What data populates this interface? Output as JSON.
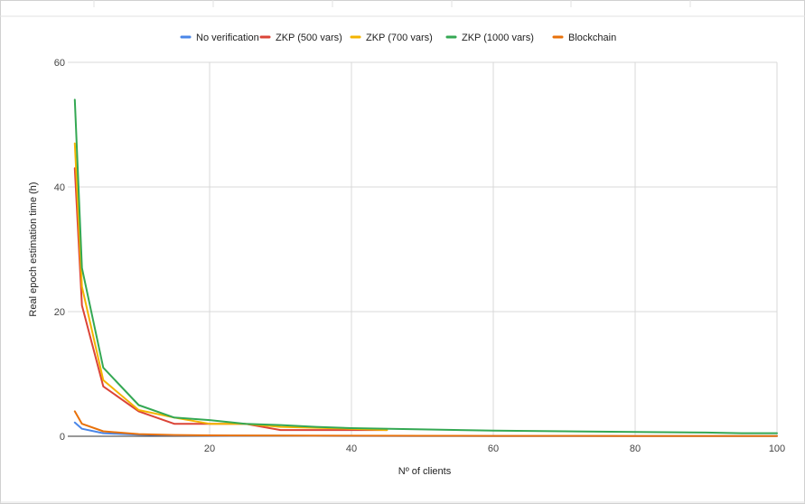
{
  "chart_data": {
    "type": "line",
    "title": "",
    "xlabel": "Nº of clients",
    "ylabel": "Real epoch estimation time (h)",
    "xlim": [
      0,
      100
    ],
    "ylim": [
      0,
      60
    ],
    "xticks": [
      "20",
      "40",
      "60",
      "80",
      "100"
    ],
    "yticks": [
      "0",
      "20",
      "40",
      "60"
    ],
    "grid": true,
    "legend_position": "top",
    "series": [
      {
        "name": "No verification",
        "color": "#4a86e8",
        "x": [
          1,
          2,
          5,
          10,
          15,
          20,
          30,
          40,
          50,
          60,
          70,
          80,
          90,
          100
        ],
        "y": [
          2.2,
          1.2,
          0.5,
          0.25,
          0.15,
          0.1,
          0.08,
          0.06,
          0.05,
          0.05,
          0.04,
          0.04,
          0.03,
          0.03
        ]
      },
      {
        "name": "ZKP (500 vars)",
        "color": "#db4437",
        "x": [
          1,
          2,
          5,
          10,
          15,
          20,
          25,
          30,
          35,
          40,
          45
        ],
        "y": [
          43,
          21,
          8,
          4,
          2,
          2,
          2,
          1,
          1,
          1,
          1
        ]
      },
      {
        "name": "ZKP (700 vars)",
        "color": "#f4b400",
        "x": [
          1,
          2,
          5,
          10,
          15,
          20,
          25,
          30,
          40,
          45
        ],
        "y": [
          47,
          24,
          9,
          4.2,
          3,
          2,
          2,
          1.5,
          1.2,
          1
        ]
      },
      {
        "name": "ZKP (1000 vars)",
        "color": "#34a853",
        "x": [
          1,
          2,
          5,
          10,
          15,
          20,
          25,
          30,
          35,
          40,
          50,
          60,
          70,
          80,
          90,
          95,
          100
        ],
        "y": [
          54,
          27,
          11,
          5,
          3,
          2.6,
          2,
          1.8,
          1.5,
          1.3,
          1.1,
          0.9,
          0.8,
          0.7,
          0.6,
          0.5,
          0.5
        ]
      },
      {
        "name": "Blockchain",
        "color": "#e8710a",
        "x": [
          1,
          2,
          5,
          10,
          15,
          20,
          30,
          40,
          50,
          60,
          70,
          80,
          90,
          100
        ],
        "y": [
          4,
          2,
          0.8,
          0.35,
          0.2,
          0.15,
          0.1,
          0.08,
          0.07,
          0.06,
          0.06,
          0.05,
          0.05,
          0.05
        ]
      }
    ]
  }
}
